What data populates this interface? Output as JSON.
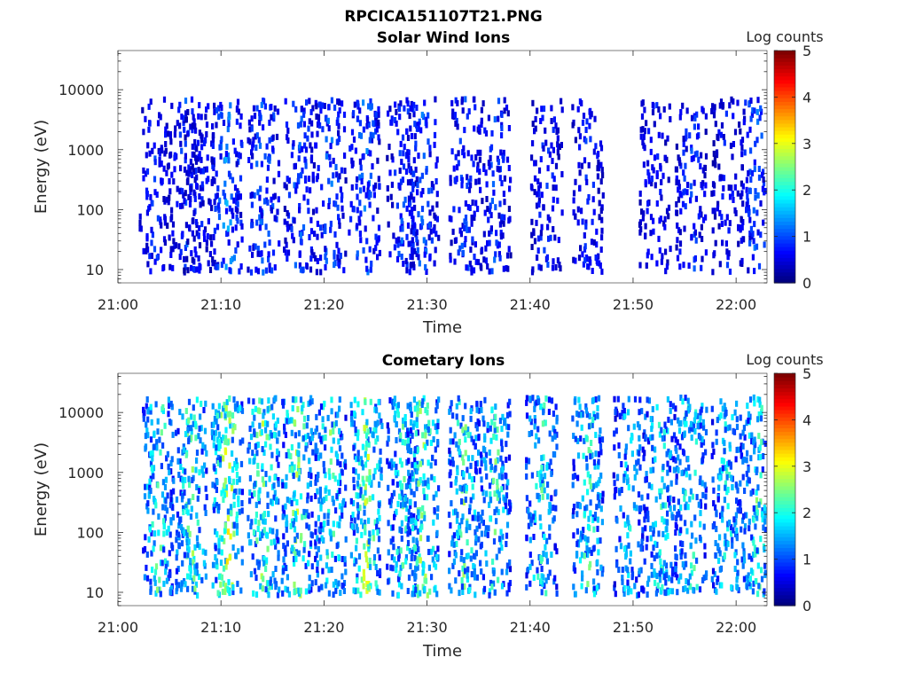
{
  "figure": {
    "title": "RPCICA151107T21.PNG"
  },
  "chart_data": [
    {
      "type": "heatmap",
      "title": "Solar Wind Ions",
      "xlabel": "Time",
      "ylabel": "Energy (eV)",
      "x_ticks": [
        "21:00",
        "21:10",
        "21:20",
        "21:30",
        "21:40",
        "21:50",
        "22:00"
      ],
      "xlim": [
        "21:00",
        "22:03"
      ],
      "y_scale": "log",
      "y_ticks": [
        "10",
        "100",
        "1000",
        "10000"
      ],
      "ylim": [
        6,
        45000
      ],
      "colorbar": {
        "label": "Log counts",
        "ticks": [
          "0",
          "1",
          "2",
          "3",
          "4",
          "5"
        ],
        "range": [
          0,
          5
        ],
        "colormap": "jet"
      },
      "bursts": [
        {
          "t": "21:03.5",
          "level": 0.8
        },
        {
          "t": "21:06.5",
          "level": 0.9
        },
        {
          "t": "21:07.8",
          "level": 0.7
        },
        {
          "t": "21:10.5",
          "level": 1.2
        },
        {
          "t": "21:14.0",
          "level": 1.1
        },
        {
          "t": "21:17.5",
          "level": 1.0
        },
        {
          "t": "21:20.5",
          "level": 1.0
        },
        {
          "t": "21:23.8",
          "level": 1.1
        },
        {
          "t": "21:27.5",
          "level": 0.9
        },
        {
          "t": "21:29.5",
          "level": 1.0
        },
        {
          "t": "21:33.5",
          "level": 0.9
        },
        {
          "t": "21:36.5",
          "level": 0.9
        },
        {
          "t": "21:41.5",
          "level": 0.8
        },
        {
          "t": "21:45.5",
          "level": 0.8
        },
        {
          "t": "21:52.0",
          "level": 0.7
        },
        {
          "t": "21:55.5",
          "level": 0.9
        },
        {
          "t": "21:59.0",
          "level": 0.7
        },
        {
          "t": "22:01.8",
          "level": 1.0
        }
      ]
    },
    {
      "type": "heatmap",
      "title": "Cometary Ions",
      "xlabel": "Time",
      "ylabel": "Energy (eV)",
      "x_ticks": [
        "21:00",
        "21:10",
        "21:20",
        "21:30",
        "21:40",
        "21:50",
        "22:00"
      ],
      "xlim": [
        "21:00",
        "22:03"
      ],
      "y_scale": "log",
      "y_ticks": [
        "10",
        "100",
        "1000",
        "10000"
      ],
      "ylim": [
        6,
        45000
      ],
      "colorbar": {
        "label": "Log counts",
        "ticks": [
          "0",
          "1",
          "2",
          "3",
          "4",
          "5"
        ],
        "range": [
          0,
          5
        ],
        "colormap": "jet"
      },
      "bursts": [
        {
          "t": "21:03.8",
          "level": 2.0
        },
        {
          "t": "21:07.0",
          "level": 2.2
        },
        {
          "t": "21:10.5",
          "level": 2.5
        },
        {
          "t": "21:14.0",
          "level": 2.3
        },
        {
          "t": "21:17.3",
          "level": 2.3
        },
        {
          "t": "21:20.5",
          "level": 2.0
        },
        {
          "t": "21:24.0",
          "level": 2.4
        },
        {
          "t": "21:27.5",
          "level": 1.9
        },
        {
          "t": "21:29.5",
          "level": 2.3
        },
        {
          "t": "21:33.5",
          "level": 2.1
        },
        {
          "t": "21:36.5",
          "level": 2.0
        },
        {
          "t": "21:41.0",
          "level": 1.9
        },
        {
          "t": "21:45.5",
          "level": 2.0
        },
        {
          "t": "21:49.5",
          "level": 1.6
        },
        {
          "t": "21:52.5",
          "level": 1.9
        },
        {
          "t": "21:55.5",
          "level": 2.0
        },
        {
          "t": "21:59.0",
          "level": 1.8
        },
        {
          "t": "22:02.0",
          "level": 2.0
        }
      ]
    }
  ]
}
